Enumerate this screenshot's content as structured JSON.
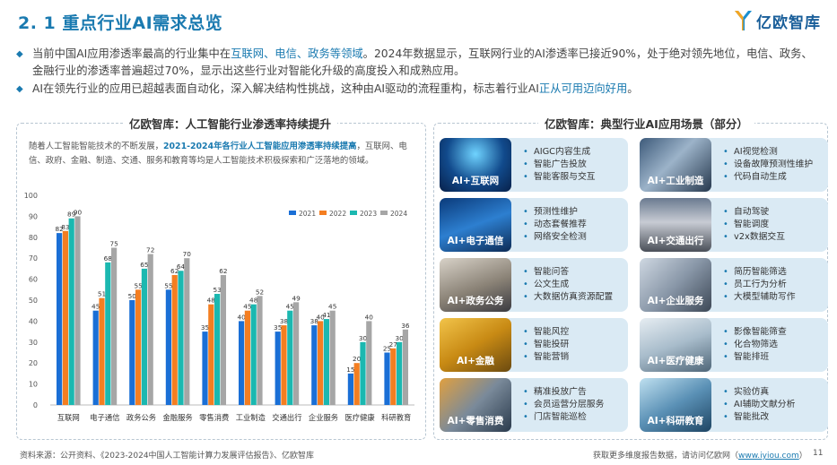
{
  "header": {
    "title": "2. 1 重点行业AI需求总览",
    "logo_text": "亿欧智库"
  },
  "bullets": [
    {
      "pre": "当前中国AI应用渗透率最高的行业集中在",
      "hl": "互联网、电信、政务等领域",
      "post": "。2024年数据显示，互联网行业的AI渗透率已接近90%，处于绝对领先地位，电信、政务、金融行业的渗透率普遍超过70%，显示出这些行业对智能化升级的高度投入和成熟应用。"
    },
    {
      "pre": "AI在领先行业的应用已超越表面自动化，深入解决结构性挑战，这种由AI驱动的流程重构，标志着行业AI",
      "hl": "正从可用迈向好用",
      "post": "。"
    }
  ],
  "left_panel": {
    "title": "亿欧智库：人工智能行业渗透率持续提升",
    "intro_pre": "随着人工智能智能技术的不断发展，",
    "intro_hl": "2021-2024年各行业人工智能应用渗透率持续提高",
    "intro_post": "，互联网、电信、政府、金融、制造、交通、服务和教育等均是人工智能技术积极探索和广泛落地的领域。"
  },
  "chart_data": {
    "type": "bar",
    "title": "",
    "xlabel": "",
    "ylabel": "",
    "ylim": [
      0,
      100
    ],
    "yticks": [
      0,
      10,
      20,
      30,
      40,
      50,
      60,
      70,
      80,
      90,
      100
    ],
    "grid": false,
    "legend_position": "top-right",
    "categories": [
      "互联网",
      "电子通信",
      "政务公务",
      "金融服务",
      "零售消费",
      "工业制造",
      "交通出行",
      "企业服务",
      "医疗健康",
      "科研教育"
    ],
    "series": [
      {
        "name": "2021",
        "color": "#1a6fd6",
        "values": [
          82,
          45,
          50,
          55,
          35,
          40,
          35,
          38,
          15,
          25
        ]
      },
      {
        "name": "2022",
        "color": "#f47e21",
        "values": [
          83,
          51,
          55,
          62,
          48,
          45,
          38,
          40,
          20,
          27
        ]
      },
      {
        "name": "2023",
        "color": "#1bb8b0",
        "values": [
          89,
          68,
          65,
          64,
          53,
          48,
          45,
          41,
          30,
          30
        ]
      },
      {
        "name": "2024",
        "color": "#a6a6a6",
        "values": [
          90,
          75,
          72,
          70,
          62,
          52,
          49,
          45,
          40,
          36
        ]
      }
    ]
  },
  "right_panel": {
    "title": "亿欧智库：典型行业AI应用场景（部分）",
    "cards": [
      {
        "label": "AI+互联网",
        "icon": "ai-brain-image",
        "items": [
          "AIGC内容生成",
          "智能广告投放",
          "智能客服与交互"
        ]
      },
      {
        "label": "AI+工业制造",
        "icon": "robot-arm-image",
        "items": [
          "AI视觉检测",
          "设备故障预测性维护",
          "代码自动生成"
        ]
      },
      {
        "label": "AI+电子通信",
        "icon": "network-image",
        "items": [
          "预测性维护",
          "动态套餐推荐",
          "网络安全检测"
        ]
      },
      {
        "label": "AI+交通出行",
        "icon": "traffic-image",
        "items": [
          "自动驾驶",
          "智能调度",
          "v2x数据交互"
        ]
      },
      {
        "label": "AI+政务公务",
        "icon": "government-image",
        "items": [
          "智能问答",
          "公文生成",
          "大数据仿真资源配置"
        ]
      },
      {
        "label": "AI+企业服务",
        "icon": "office-image",
        "items": [
          "简历智能筛选",
          "员工行为分析",
          "大模型辅助写作"
        ]
      },
      {
        "label": "AI+金融",
        "icon": "coins-image",
        "items": [
          "智能风控",
          "智能投研",
          "智能营销"
        ]
      },
      {
        "label": "AI+医疗健康",
        "icon": "doctor-image",
        "items": [
          "影像智能筛查",
          "化合物筛选",
          "智能排班"
        ]
      },
      {
        "label": "AI+零售消费",
        "icon": "shelves-image",
        "items": [
          "精准投放广告",
          "会员运营分层服务",
          "门店智能巡检"
        ]
      },
      {
        "label": "AI+科研教育",
        "icon": "lab-image",
        "items": [
          "实验仿真",
          "AI辅助文献分析",
          "智能批改"
        ]
      }
    ]
  },
  "footer": {
    "source": "资料来源：公开资料、《2023-2024中国人工智能计算力发展评估报告》、亿欧智库",
    "right_pre": "获取更多维度报告数据，请访问亿欧网（",
    "right_link": "www.iyiou.com",
    "right_post": "）",
    "page": "11"
  }
}
